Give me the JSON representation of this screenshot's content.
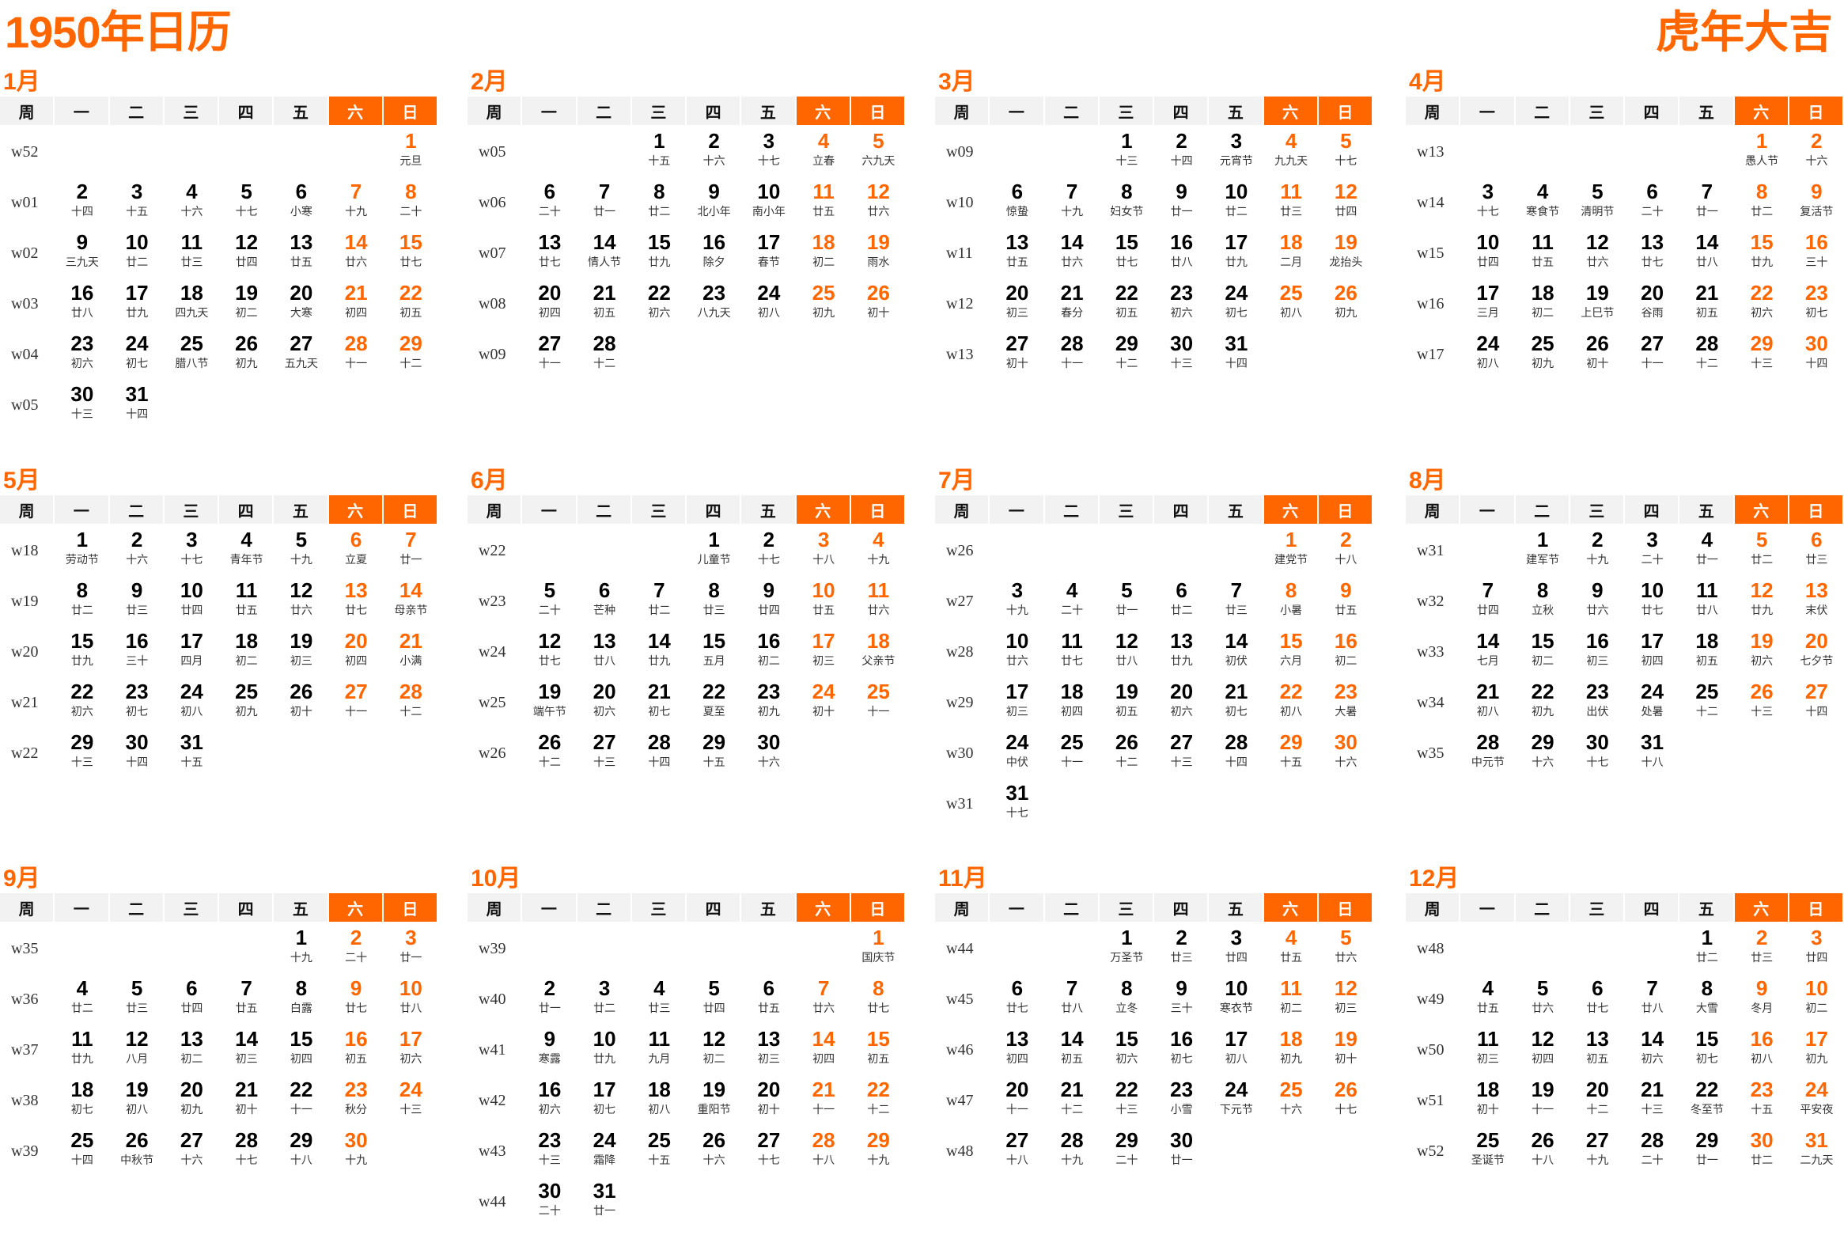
{
  "title": "1950年日历",
  "slogan": "虎年大吉",
  "accent_color": "#ff6600",
  "weekday_headers": [
    "周",
    "一",
    "二",
    "三",
    "四",
    "五",
    "六",
    "日"
  ],
  "months": [
    {
      "label": "1月",
      "offset": 6,
      "weeks": [
        "w52",
        "w01",
        "w02",
        "w03",
        "w04",
        "w05"
      ],
      "lunar": [
        "元旦",
        "十四",
        "十五",
        "十六",
        "十七",
        "小寒",
        "十九",
        "二十",
        "三九天",
        "廿二",
        "廿三",
        "廿四",
        "廿五",
        "廿六",
        "廿七",
        "廿八",
        "廿九",
        "四九天",
        "初二",
        "大寒",
        "初四",
        "初五",
        "初六",
        "初七",
        "腊八节",
        "初九",
        "五九天",
        "十一",
        "十二",
        "十三",
        "十四"
      ]
    },
    {
      "label": "2月",
      "offset": 2,
      "weeks": [
        "w05",
        "w06",
        "w07",
        "w08",
        "w09"
      ],
      "lunar": [
        "十五",
        "十六",
        "十七",
        "立春",
        "六九天",
        "二十",
        "廿一",
        "廿二",
        "北小年",
        "南小年",
        "廿五",
        "廿六",
        "廿七",
        "情人节",
        "廿九",
        "除夕",
        "春节",
        "初二",
        "雨水",
        "初四",
        "初五",
        "初六",
        "八九天",
        "初八",
        "初九",
        "初十",
        "十一",
        "十二"
      ]
    },
    {
      "label": "3月",
      "offset": 2,
      "weeks": [
        "w09",
        "w10",
        "w11",
        "w12",
        "w13"
      ],
      "lunar": [
        "十三",
        "十四",
        "元宵节",
        "九九天",
        "十七",
        "惊蛰",
        "十九",
        "妇女节",
        "廿一",
        "廿二",
        "廿三",
        "廿四",
        "廿五",
        "廿六",
        "廿七",
        "廿八",
        "廿九",
        "二月",
        "龙抬头",
        "初三",
        "春分",
        "初五",
        "初六",
        "初七",
        "初八",
        "初九",
        "初十",
        "十一",
        "十二",
        "十三",
        "十四"
      ]
    },
    {
      "label": "4月",
      "offset": 5,
      "weeks": [
        "w13",
        "w14",
        "w15",
        "w16",
        "w17"
      ],
      "lunar": [
        "愚人节",
        "十六",
        "十七",
        "寒食节",
        "清明节",
        "二十",
        "廿一",
        "廿二",
        "复活节",
        "廿四",
        "廿五",
        "廿六",
        "廿七",
        "廿八",
        "廿九",
        "三十",
        "三月",
        "初二",
        "上巳节",
        "谷雨",
        "初五",
        "初六",
        "初七",
        "初八",
        "初九",
        "初十",
        "十一",
        "十二",
        "十三",
        "十四"
      ]
    },
    {
      "label": "5月",
      "offset": 0,
      "weeks": [
        "w18",
        "w19",
        "w20",
        "w21",
        "w22"
      ],
      "lunar": [
        "劳动节",
        "十六",
        "十七",
        "青年节",
        "十九",
        "立夏",
        "廿一",
        "廿二",
        "廿三",
        "廿四",
        "廿五",
        "廿六",
        "廿七",
        "母亲节",
        "廿九",
        "三十",
        "四月",
        "初二",
        "初三",
        "初四",
        "小满",
        "初六",
        "初七",
        "初八",
        "初九",
        "初十",
        "十一",
        "十二",
        "十三",
        "十四",
        "十五"
      ]
    },
    {
      "label": "6月",
      "offset": 3,
      "weeks": [
        "w22",
        "w23",
        "w24",
        "w25",
        "w26"
      ],
      "lunar": [
        "儿童节",
        "十七",
        "十八",
        "十九",
        "二十",
        "芒种",
        "廿二",
        "廿三",
        "廿四",
        "廿五",
        "廿六",
        "廿七",
        "廿八",
        "廿九",
        "五月",
        "初二",
        "初三",
        "父亲节",
        "端午节",
        "初六",
        "初七",
        "夏至",
        "初九",
        "初十",
        "十一",
        "十二",
        "十三",
        "十四",
        "十五",
        "十六"
      ]
    },
    {
      "label": "7月",
      "offset": 5,
      "weeks": [
        "w26",
        "w27",
        "w28",
        "w29",
        "w30",
        "w31"
      ],
      "lunar": [
        "建党节",
        "十八",
        "十九",
        "二十",
        "廿一",
        "廿二",
        "廿三",
        "小暑",
        "廿五",
        "廿六",
        "廿七",
        "廿八",
        "廿九",
        "初伏",
        "六月",
        "初二",
        "初三",
        "初四",
        "初五",
        "初六",
        "初七",
        "初八",
        "大暑",
        "中伏",
        "十一",
        "十二",
        "十三",
        "十四",
        "十五",
        "十六",
        "十七"
      ]
    },
    {
      "label": "8月",
      "offset": 1,
      "weeks": [
        "w31",
        "w32",
        "w33",
        "w34",
        "w35"
      ],
      "lunar": [
        "建军节",
        "十九",
        "二十",
        "廿一",
        "廿二",
        "廿三",
        "廿四",
        "立秋",
        "廿六",
        "廿七",
        "廿八",
        "廿九",
        "末伏",
        "七月",
        "初二",
        "初三",
        "初四",
        "初五",
        "初六",
        "七夕节",
        "初八",
        "初九",
        "出伏",
        "处暑",
        "十二",
        "十三",
        "十四",
        "中元节",
        "十六",
        "十七",
        "十八"
      ]
    },
    {
      "label": "9月",
      "offset": 4,
      "weeks": [
        "w35",
        "w36",
        "w37",
        "w38",
        "w39"
      ],
      "lunar": [
        "十九",
        "二十",
        "廿一",
        "廿二",
        "廿三",
        "廿四",
        "廿五",
        "白露",
        "廿七",
        "廿八",
        "廿九",
        "八月",
        "初二",
        "初三",
        "初四",
        "初五",
        "初六",
        "初七",
        "初八",
        "初九",
        "初十",
        "十一",
        "秋分",
        "十三",
        "十四",
        "中秋节",
        "十六",
        "十七",
        "十八",
        "十九"
      ]
    },
    {
      "label": "10月",
      "offset": 6,
      "weeks": [
        "w39",
        "w40",
        "w41",
        "w42",
        "w43",
        "w44"
      ],
      "lunar": [
        "国庆节",
        "廿一",
        "廿二",
        "廿三",
        "廿四",
        "廿五",
        "廿六",
        "廿七",
        "寒露",
        "廿九",
        "九月",
        "初二",
        "初三",
        "初四",
        "初五",
        "初六",
        "初七",
        "初八",
        "重阳节",
        "初十",
        "十一",
        "十二",
        "十三",
        "霜降",
        "十五",
        "十六",
        "十七",
        "十八",
        "十九",
        "二十",
        "廿一"
      ]
    },
    {
      "label": "11月",
      "offset": 2,
      "weeks": [
        "w44",
        "w45",
        "w46",
        "w47",
        "w48"
      ],
      "lunar": [
        "万圣节",
        "廿三",
        "廿四",
        "廿五",
        "廿六",
        "廿七",
        "廿八",
        "立冬",
        "三十",
        "寒衣节",
        "初二",
        "初三",
        "初四",
        "初五",
        "初六",
        "初七",
        "初八",
        "初九",
        "初十",
        "十一",
        "十二",
        "十三",
        "小雪",
        "下元节",
        "十六",
        "十七",
        "十八",
        "十九",
        "二十",
        "廿一"
      ]
    },
    {
      "label": "12月",
      "offset": 4,
      "weeks": [
        "w48",
        "w49",
        "w50",
        "w51",
        "w52"
      ],
      "lunar": [
        "廿二",
        "廿三",
        "廿四",
        "廿五",
        "廿六",
        "廿七",
        "廿八",
        "大雪",
        "冬月",
        "初二",
        "初三",
        "初四",
        "初五",
        "初六",
        "初七",
        "初八",
        "初九",
        "初十",
        "十一",
        "十二",
        "十三",
        "冬至节",
        "十五",
        "平安夜",
        "圣诞节",
        "十八",
        "十九",
        "二十",
        "廿一",
        "廿二",
        "二九天"
      ]
    }
  ]
}
